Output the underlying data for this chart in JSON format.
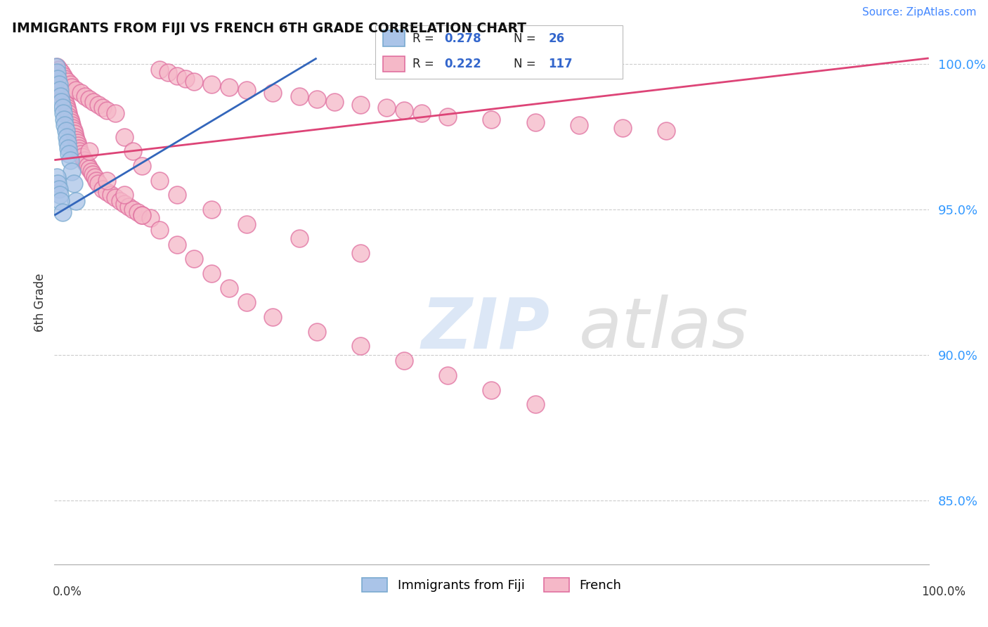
{
  "title": "IMMIGRANTS FROM FIJI VS FRENCH 6TH GRADE CORRELATION CHART",
  "source": "Source: ZipAtlas.com",
  "ylabel": "6th Grade",
  "xlim": [
    0.0,
    1.0
  ],
  "ylim": [
    0.828,
    1.008
  ],
  "yticks": [
    0.85,
    0.9,
    0.95,
    1.0
  ],
  "ytick_labels": [
    "85.0%",
    "90.0%",
    "95.0%",
    "100.0%"
  ],
  "grid_color": "#cccccc",
  "background_color": "#ffffff",
  "fiji_color": "#aac4e8",
  "fiji_edge_color": "#7aaad0",
  "french_color": "#f5b8c8",
  "french_edge_color": "#e070a0",
  "fiji_R": 0.278,
  "fiji_N": 26,
  "french_R": 0.222,
  "french_N": 117,
  "fiji_line_color": "#3366bb",
  "french_line_color": "#dd4477",
  "watermark_zip_color": "#c5d8f0",
  "watermark_atlas_color": "#c8c8c8",
  "fiji_x": [
    0.002,
    0.003,
    0.004,
    0.005,
    0.006,
    0.007,
    0.008,
    0.009,
    0.01,
    0.011,
    0.012,
    0.013,
    0.014,
    0.015,
    0.016,
    0.017,
    0.018,
    0.02,
    0.022,
    0.025,
    0.003,
    0.004,
    0.005,
    0.006,
    0.007,
    0.009
  ],
  "fiji_y": [
    0.999,
    0.997,
    0.995,
    0.993,
    0.991,
    0.989,
    0.987,
    0.985,
    0.983,
    0.981,
    0.979,
    0.977,
    0.975,
    0.973,
    0.971,
    0.969,
    0.967,
    0.963,
    0.959,
    0.953,
    0.961,
    0.959,
    0.957,
    0.955,
    0.953,
    0.949
  ],
  "french_x": [
    0.002,
    0.003,
    0.004,
    0.005,
    0.006,
    0.007,
    0.008,
    0.009,
    0.01,
    0.011,
    0.012,
    0.013,
    0.014,
    0.015,
    0.016,
    0.017,
    0.018,
    0.019,
    0.02,
    0.021,
    0.022,
    0.023,
    0.024,
    0.025,
    0.026,
    0.027,
    0.028,
    0.029,
    0.03,
    0.032,
    0.034,
    0.036,
    0.038,
    0.04,
    0.042,
    0.044,
    0.046,
    0.048,
    0.05,
    0.055,
    0.06,
    0.065,
    0.07,
    0.075,
    0.08,
    0.085,
    0.09,
    0.095,
    0.1,
    0.11,
    0.12,
    0.13,
    0.14,
    0.15,
    0.16,
    0.18,
    0.2,
    0.22,
    0.25,
    0.28,
    0.3,
    0.32,
    0.35,
    0.38,
    0.4,
    0.42,
    0.45,
    0.5,
    0.55,
    0.6,
    0.65,
    0.7,
    0.003,
    0.005,
    0.008,
    0.01,
    0.012,
    0.015,
    0.018,
    0.02,
    0.025,
    0.03,
    0.035,
    0.04,
    0.045,
    0.05,
    0.055,
    0.06,
    0.07,
    0.08,
    0.09,
    0.1,
    0.12,
    0.14,
    0.18,
    0.22,
    0.28,
    0.35,
    0.04,
    0.06,
    0.08,
    0.1,
    0.12,
    0.14,
    0.16,
    0.18,
    0.2,
    0.22,
    0.25,
    0.3,
    0.35,
    0.4,
    0.45,
    0.5,
    0.55
  ],
  "french_y": [
    0.997,
    0.996,
    0.995,
    0.994,
    0.993,
    0.992,
    0.991,
    0.99,
    0.989,
    0.988,
    0.987,
    0.986,
    0.985,
    0.984,
    0.983,
    0.982,
    0.981,
    0.98,
    0.979,
    0.978,
    0.977,
    0.976,
    0.975,
    0.974,
    0.973,
    0.972,
    0.971,
    0.97,
    0.969,
    0.968,
    0.967,
    0.966,
    0.965,
    0.964,
    0.963,
    0.962,
    0.961,
    0.96,
    0.959,
    0.957,
    0.956,
    0.955,
    0.954,
    0.953,
    0.952,
    0.951,
    0.95,
    0.949,
    0.948,
    0.947,
    0.998,
    0.997,
    0.996,
    0.995,
    0.994,
    0.993,
    0.992,
    0.991,
    0.99,
    0.989,
    0.988,
    0.987,
    0.986,
    0.985,
    0.984,
    0.983,
    0.982,
    0.981,
    0.98,
    0.979,
    0.978,
    0.977,
    0.999,
    0.998,
    0.997,
    0.996,
    0.995,
    0.994,
    0.993,
    0.992,
    0.991,
    0.99,
    0.989,
    0.988,
    0.987,
    0.986,
    0.985,
    0.984,
    0.983,
    0.975,
    0.97,
    0.965,
    0.96,
    0.955,
    0.95,
    0.945,
    0.94,
    0.935,
    0.97,
    0.96,
    0.955,
    0.948,
    0.943,
    0.938,
    0.933,
    0.928,
    0.923,
    0.918,
    0.913,
    0.908,
    0.903,
    0.898,
    0.893,
    0.888,
    0.883
  ],
  "fiji_line_x": [
    0.0,
    0.3
  ],
  "fiji_line_y": [
    0.948,
    1.002
  ],
  "french_line_x": [
    0.0,
    1.0
  ],
  "french_line_y": [
    0.967,
    1.002
  ]
}
